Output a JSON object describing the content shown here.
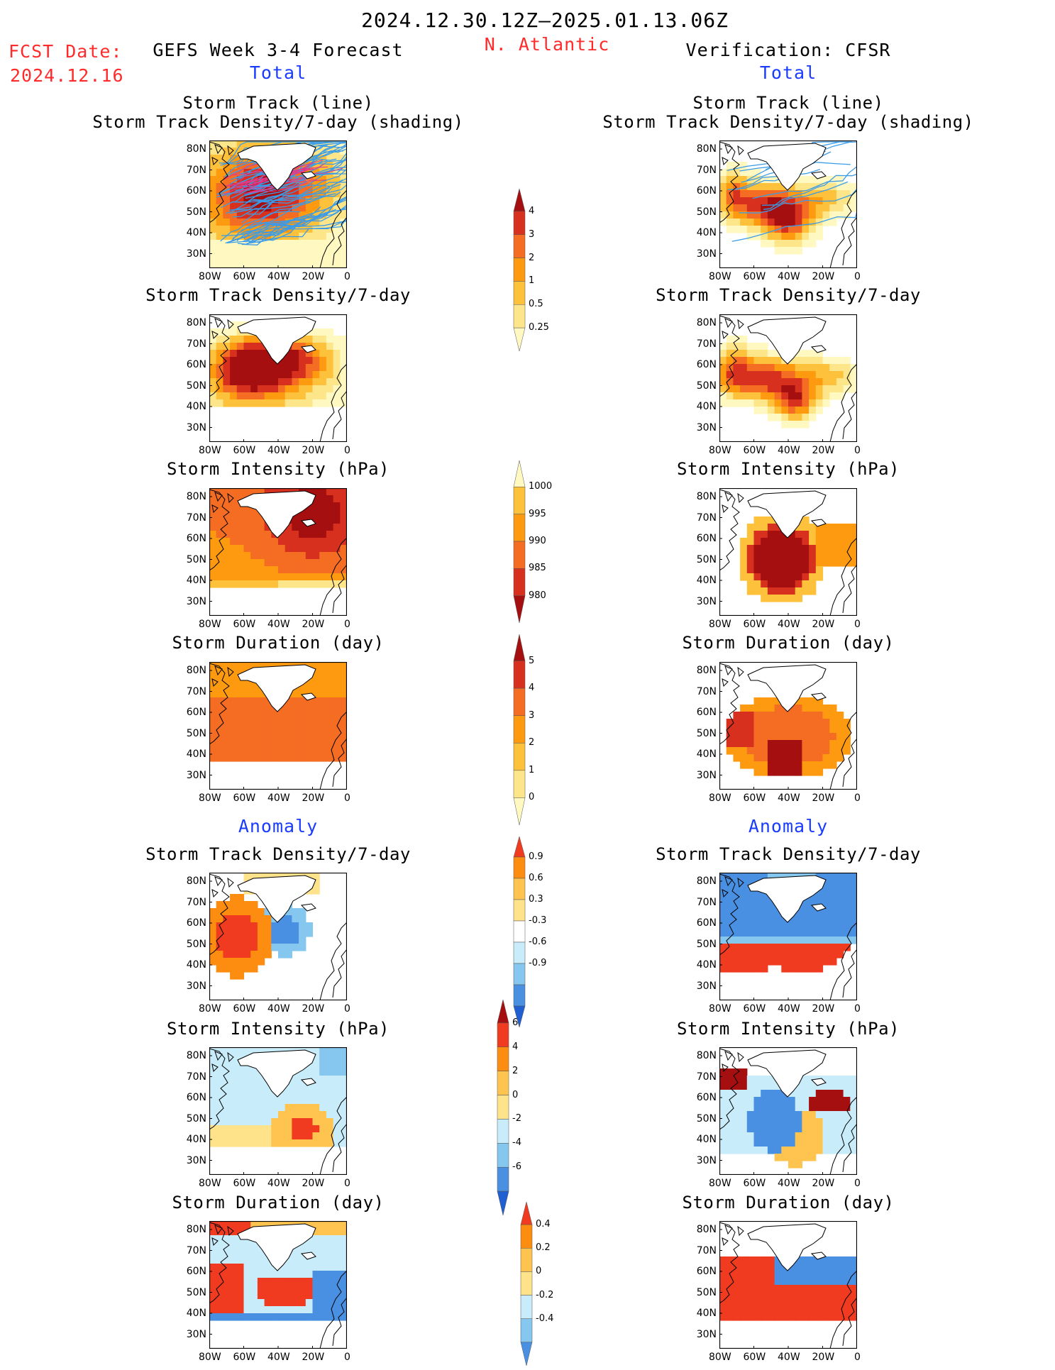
{
  "header": {
    "period": "2024.12.30.12Z–2025.01.13.06Z",
    "fcst_label": "FCST Date:",
    "fcst_date": "2024.12.16",
    "region": "N. Atlantic",
    "left_title": "GEFS Week 3-4 Forecast",
    "right_title": "Verification: CFSR",
    "left_total": "Total",
    "right_total": "Total",
    "left_anomaly": "Anomaly",
    "right_anomaly": "Anomaly"
  },
  "axes": {
    "lat_ticks": [
      "80N",
      "70N",
      "60N",
      "50N",
      "40N",
      "30N"
    ],
    "lon_ticks": [
      "80W",
      "60W",
      "40W",
      "20W",
      "0"
    ]
  },
  "panels": {
    "row1": {
      "title1": "Storm Track (line)",
      "title2": "Storm Track Density/7-day (shading)"
    },
    "row2": {
      "title": "Storm Track Density/7-day"
    },
    "row3": {
      "title": "Storm Intensity (hPa)"
    },
    "row4": {
      "title": "Storm Duration (day)"
    },
    "row5": {
      "title": "Storm Track Density/7-day"
    },
    "row6": {
      "title": "Storm Intensity (hPa)"
    },
    "row7": {
      "title": "Storm Duration (day)"
    }
  },
  "colorbars": {
    "density_total": {
      "labels": [
        "4",
        "3",
        "2",
        "1",
        "0.5",
        "0.25"
      ],
      "colors": [
        "#a50f0f",
        "#d7301f",
        "#f46d23",
        "#fd9a10",
        "#fdc13b",
        "#fde68a",
        "#fff8c0"
      ]
    },
    "intensity_total": {
      "labels": [
        "1000",
        "995",
        "990",
        "985",
        "980"
      ],
      "colors": [
        "#fff8c0",
        "#fdc13b",
        "#fd9a10",
        "#f46d23",
        "#d7301f",
        "#a50f0f"
      ]
    },
    "duration_total": {
      "labels": [
        "5",
        "4",
        "3",
        "2",
        "1",
        "0"
      ],
      "colors": [
        "#a50f0f",
        "#d7301f",
        "#f46d23",
        "#fd9a10",
        "#fdc13b",
        "#fde68a",
        "#fff8c0"
      ]
    },
    "density_anom": {
      "labels": [
        "0.9",
        "0.6",
        "0.3",
        "-0.3",
        "-0.6",
        "-0.9"
      ],
      "colors": [
        "#f03b20",
        "#fd8d10",
        "#fec44f",
        "#ffe38a",
        "#ffffff",
        "#c8ecfa",
        "#85c7ee",
        "#4a90e2",
        "#1f5fd1"
      ]
    },
    "intensity_anom": {
      "labels": [
        "6",
        "4",
        "2",
        "0",
        "-2",
        "-4",
        "-6"
      ],
      "colors": [
        "#a50f0f",
        "#f03b20",
        "#fd8d10",
        "#fec44f",
        "#ffe38a",
        "#c8ecfa",
        "#85c7ee",
        "#4a90e2",
        "#1f5fd1"
      ]
    },
    "duration_anom": {
      "labels": [
        "0.4",
        "0.2",
        "0",
        "-0.2",
        "-0.4"
      ],
      "colors": [
        "#f03b20",
        "#fd8d10",
        "#fec44f",
        "#ffe38a",
        "#c8ecfa",
        "#85c7ee",
        "#4a90e2"
      ]
    }
  }
}
